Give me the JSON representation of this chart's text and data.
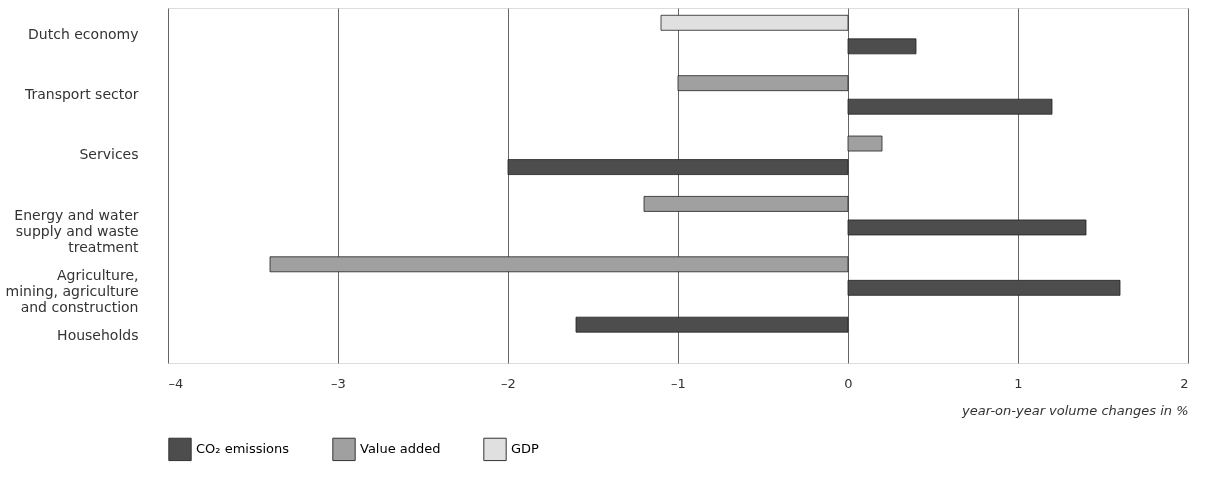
{
  "chart_data": {
    "type": "bar",
    "orientation": "horizontal",
    "categories": [
      "Dutch economy",
      "Transport sector",
      "Services",
      "Energy and water\nsupply and waste\ntreatment",
      "Agriculture,\nmining, agriculture\nand construction",
      "Households"
    ],
    "series": [
      {
        "name": "CO₂ emissions",
        "color": "#4d4d4d",
        "values": [
          0.4,
          1.2,
          -2.0,
          1.4,
          1.6,
          -1.6
        ]
      },
      {
        "name": "Value added",
        "color": "#a0a0a0",
        "values": [
          null,
          -1.0,
          0.2,
          -1.2,
          -3.4,
          null
        ]
      },
      {
        "name": "GDP",
        "color": "#e0e0e0",
        "values": [
          -1.1,
          null,
          null,
          null,
          null,
          null
        ]
      }
    ],
    "xlabel": "year-on-year volume changes in %",
    "xlim": [
      -4,
      2
    ],
    "xticks": [
      {
        "value": -4,
        "label": "–4"
      },
      {
        "value": -3,
        "label": "–3"
      },
      {
        "value": -2,
        "label": "–2"
      },
      {
        "value": -1,
        "label": "–1"
      },
      0,
      1,
      2
    ],
    "grid": "x",
    "legend": "bottom left"
  }
}
